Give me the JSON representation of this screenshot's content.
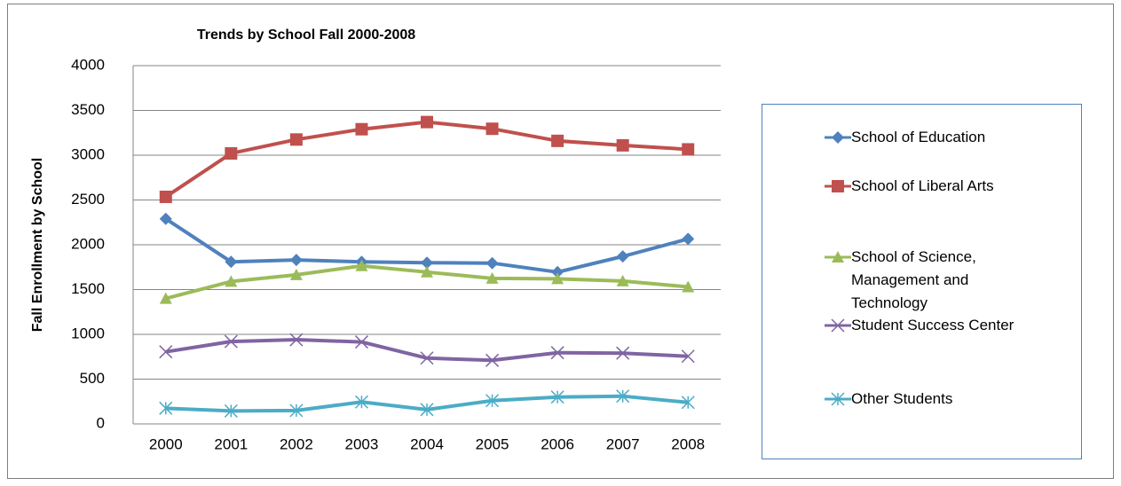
{
  "chart_data": {
    "type": "line",
    "title": "Trends by School Fall 2000-2008",
    "y_label": "Fall Enrollment by School",
    "categories": [
      "2000",
      "2001",
      "2002",
      "2003",
      "2004",
      "2005",
      "2006",
      "2007",
      "2008"
    ],
    "series": [
      {
        "name": "School of Education",
        "color": "#4f81bd",
        "marker": "diamond",
        "values": [
          2290,
          1810,
          1830,
          1810,
          1800,
          1795,
          1695,
          1870,
          2065
        ]
      },
      {
        "name": "School of Liberal Arts",
        "color": "#c0504d",
        "marker": "square",
        "values": [
          2535,
          3020,
          3175,
          3290,
          3370,
          3295,
          3160,
          3110,
          3065
        ]
      },
      {
        "name": "School of Science, Management and Technology",
        "color": "#9bbb59",
        "marker": "triangle",
        "values": [
          1400,
          1590,
          1665,
          1765,
          1695,
          1625,
          1620,
          1595,
          1530
        ]
      },
      {
        "name": "Student Success Center",
        "color": "#8064a2",
        "marker": "x",
        "values": [
          805,
          920,
          940,
          915,
          735,
          710,
          795,
          790,
          755
        ]
      },
      {
        "name": "Other Students",
        "color": "#4bacc6",
        "marker": "asterisk",
        "values": [
          175,
          145,
          150,
          245,
          160,
          260,
          300,
          310,
          240
        ]
      }
    ],
    "ylim": [
      0,
      4000
    ],
    "yticks": [
      0,
      500,
      1000,
      1500,
      2000,
      2500,
      3000,
      3500,
      4000
    ],
    "grid": true,
    "legend": "right"
  }
}
